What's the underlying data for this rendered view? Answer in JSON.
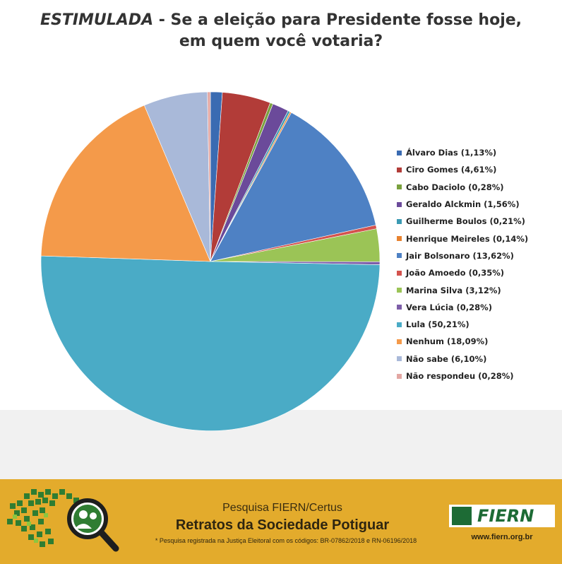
{
  "title": {
    "emphasis": "ESTIMULADA",
    "rest": " - Se a eleição para Presidente fosse hoje,",
    "line2": "em quem  você votaria?"
  },
  "chart_data": {
    "type": "pie",
    "start_angle_deg": 0,
    "direction": "clockwise",
    "legend_position": "right",
    "slices": [
      {
        "label": "Álvaro Dias (1,13%)",
        "name": "Álvaro Dias",
        "value": 1.13,
        "color": "#3a6bb2"
      },
      {
        "label": "Ciro Gomes (4,61%)",
        "name": "Ciro Gomes",
        "value": 4.61,
        "color": "#b23c38"
      },
      {
        "label": "Cabo Daciolo (0,28%)",
        "name": "Cabo Daciolo",
        "value": 0.28,
        "color": "#7aa13e"
      },
      {
        "label": "Geraldo Alckmin (1,56%)",
        "name": "Geraldo Alckmin",
        "value": 1.56,
        "color": "#6b4a9a"
      },
      {
        "label": "Guilherme Boulos (0,21%)",
        "name": "Guilherme Boulos",
        "value": 0.21,
        "color": "#3b9ab3"
      },
      {
        "label": "Henrique Meireles (0,14%)",
        "name": "Henrique Meireles",
        "value": 0.14,
        "color": "#e8822f"
      },
      {
        "label": "Jair Bolsonaro (13,62%)",
        "name": "Jair Bolsonaro",
        "value": 13.62,
        "color": "#4e81c4"
      },
      {
        "label": "João Amoedo (0,35%)",
        "name": "João Amoedo",
        "value": 0.35,
        "color": "#d4534e"
      },
      {
        "label": "Marina Silva (3,12%)",
        "name": "Marina Silva",
        "value": 3.12,
        "color": "#9bc456"
      },
      {
        "label": "Vera Lúcia (0,28%)",
        "name": "Vera Lúcia",
        "value": 0.28,
        "color": "#7d5ea8"
      },
      {
        "label": "Lula (50,21%)",
        "name": "Lula",
        "value": 50.21,
        "color": "#4aabc6"
      },
      {
        "label": "Nenhum (18,09%)",
        "name": "Nenhum",
        "value": 18.09,
        "color": "#f49a4a"
      },
      {
        "label": "Não sabe (6,10%)",
        "name": "Não sabe",
        "value": 6.1,
        "color": "#a9b9d9"
      },
      {
        "label": "Não respondeu (0,28%)",
        "name": "Não respondeu",
        "value": 0.28,
        "color": "#e3a7a3"
      }
    ]
  },
  "footer": {
    "subtitle": "Pesquisa FIERN/Certus",
    "main_title": "Retratos da Sociedade Potiguar",
    "note": "* Pesquisa registrada na Justiça Eleitoral com os códigos: BR-07862/2018 e RN-06196/2018",
    "logo_text": "FIERN",
    "website": "www.fiern.org.br",
    "background_color": "#e3ab2c"
  }
}
